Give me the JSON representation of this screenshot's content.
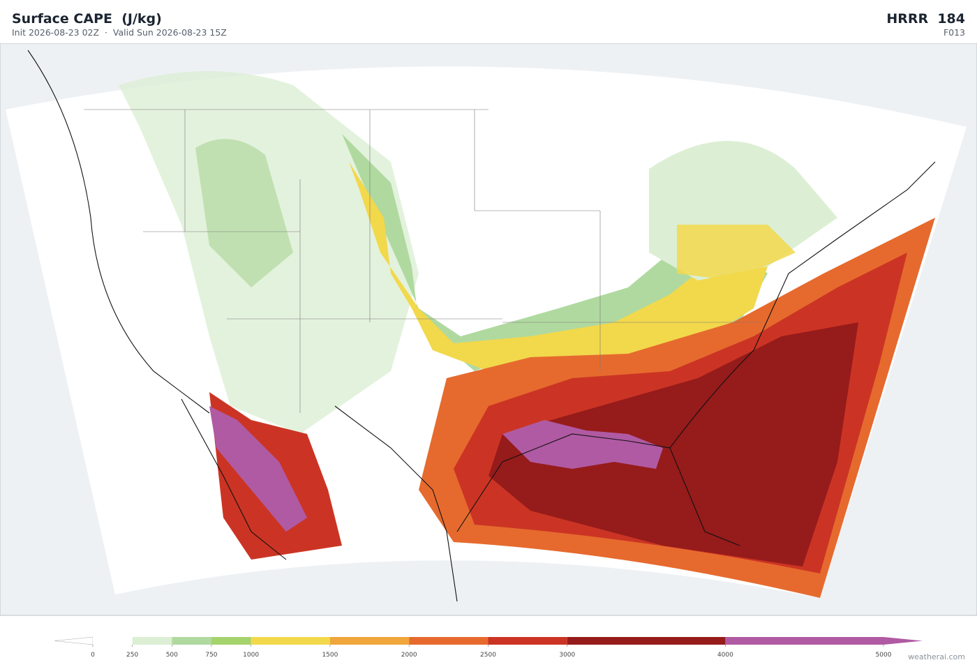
{
  "header": {
    "title": "Surface CAPE  (J/kg)",
    "subtitle": "Init 2026-08-23 02Z  ·  Valid Sun 2026-08-23 15Z",
    "model": "HRRR  184",
    "forecast_hour": "F013"
  },
  "colorbar": {
    "ticks": [
      0,
      250,
      500,
      750,
      1000,
      1500,
      2000,
      2500,
      3000,
      4000,
      5000
    ],
    "colors": [
      "#ffffff",
      "#dcefd4",
      "#b0d9a0",
      "#a5d36c",
      "#f2d84b",
      "#f0a63a",
      "#e66a2e",
      "#cb3424",
      "#961b1b",
      "#b05aa3"
    ]
  },
  "footer": {
    "credit": "weatherai.com"
  }
}
